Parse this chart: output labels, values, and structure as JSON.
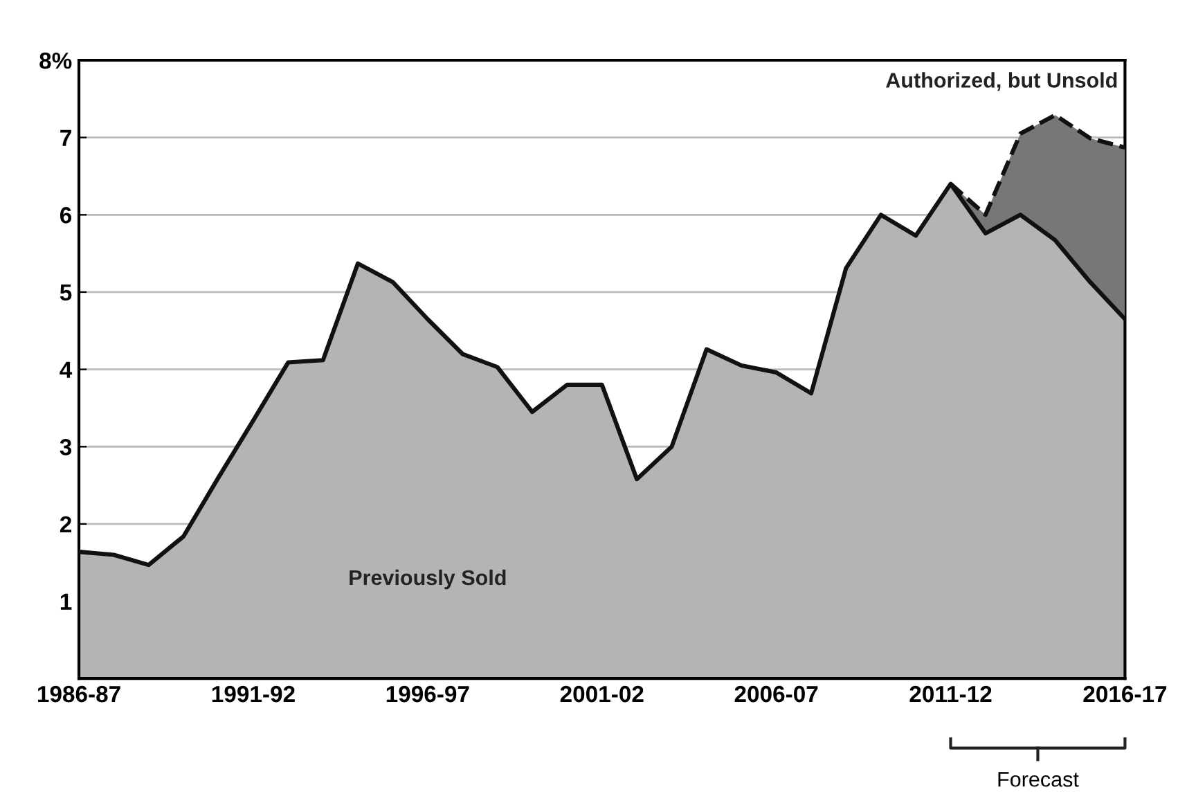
{
  "chart_data": {
    "type": "area",
    "stacked": true,
    "categories": [
      "1986-87",
      null,
      null,
      null,
      null,
      "1991-92",
      null,
      null,
      null,
      null,
      "1996-97",
      null,
      null,
      null,
      null,
      "2001-02",
      null,
      null,
      null,
      null,
      "2006-07",
      null,
      null,
      null,
      null,
      "2011-12",
      null,
      null,
      null,
      null,
      "2016-17"
    ],
    "series": [
      {
        "name": "Previously Sold",
        "color": "#b4b4b4",
        "line_style": "solid",
        "values": [
          1.64,
          1.6,
          1.47,
          1.84,
          2.6,
          3.34,
          4.09,
          4.12,
          5.37,
          5.13,
          4.65,
          4.2,
          4.03,
          3.45,
          3.8,
          3.8,
          2.58,
          3.0,
          4.26,
          4.05,
          3.96,
          3.69,
          5.31,
          6.0,
          5.73,
          6.4,
          5.76,
          6.0,
          5.67,
          5.13,
          4.65
        ]
      },
      {
        "name": "Authorized, but Unsold",
        "color": "#777777",
        "line_style": "dashed",
        "values": [
          null,
          null,
          null,
          null,
          null,
          null,
          null,
          null,
          null,
          null,
          null,
          null,
          null,
          null,
          null,
          null,
          null,
          null,
          null,
          null,
          null,
          null,
          null,
          null,
          null,
          0,
          0.24,
          1.05,
          1.62,
          1.86,
          2.22
        ]
      }
    ],
    "ylim": [
      0,
      8
    ],
    "yticks": [
      1,
      2,
      3,
      4,
      5,
      6,
      7,
      {
        "value": 8,
        "label": "8%"
      }
    ],
    "grid": "y",
    "legend": false,
    "annotations": [
      "Forecast"
    ]
  }
}
